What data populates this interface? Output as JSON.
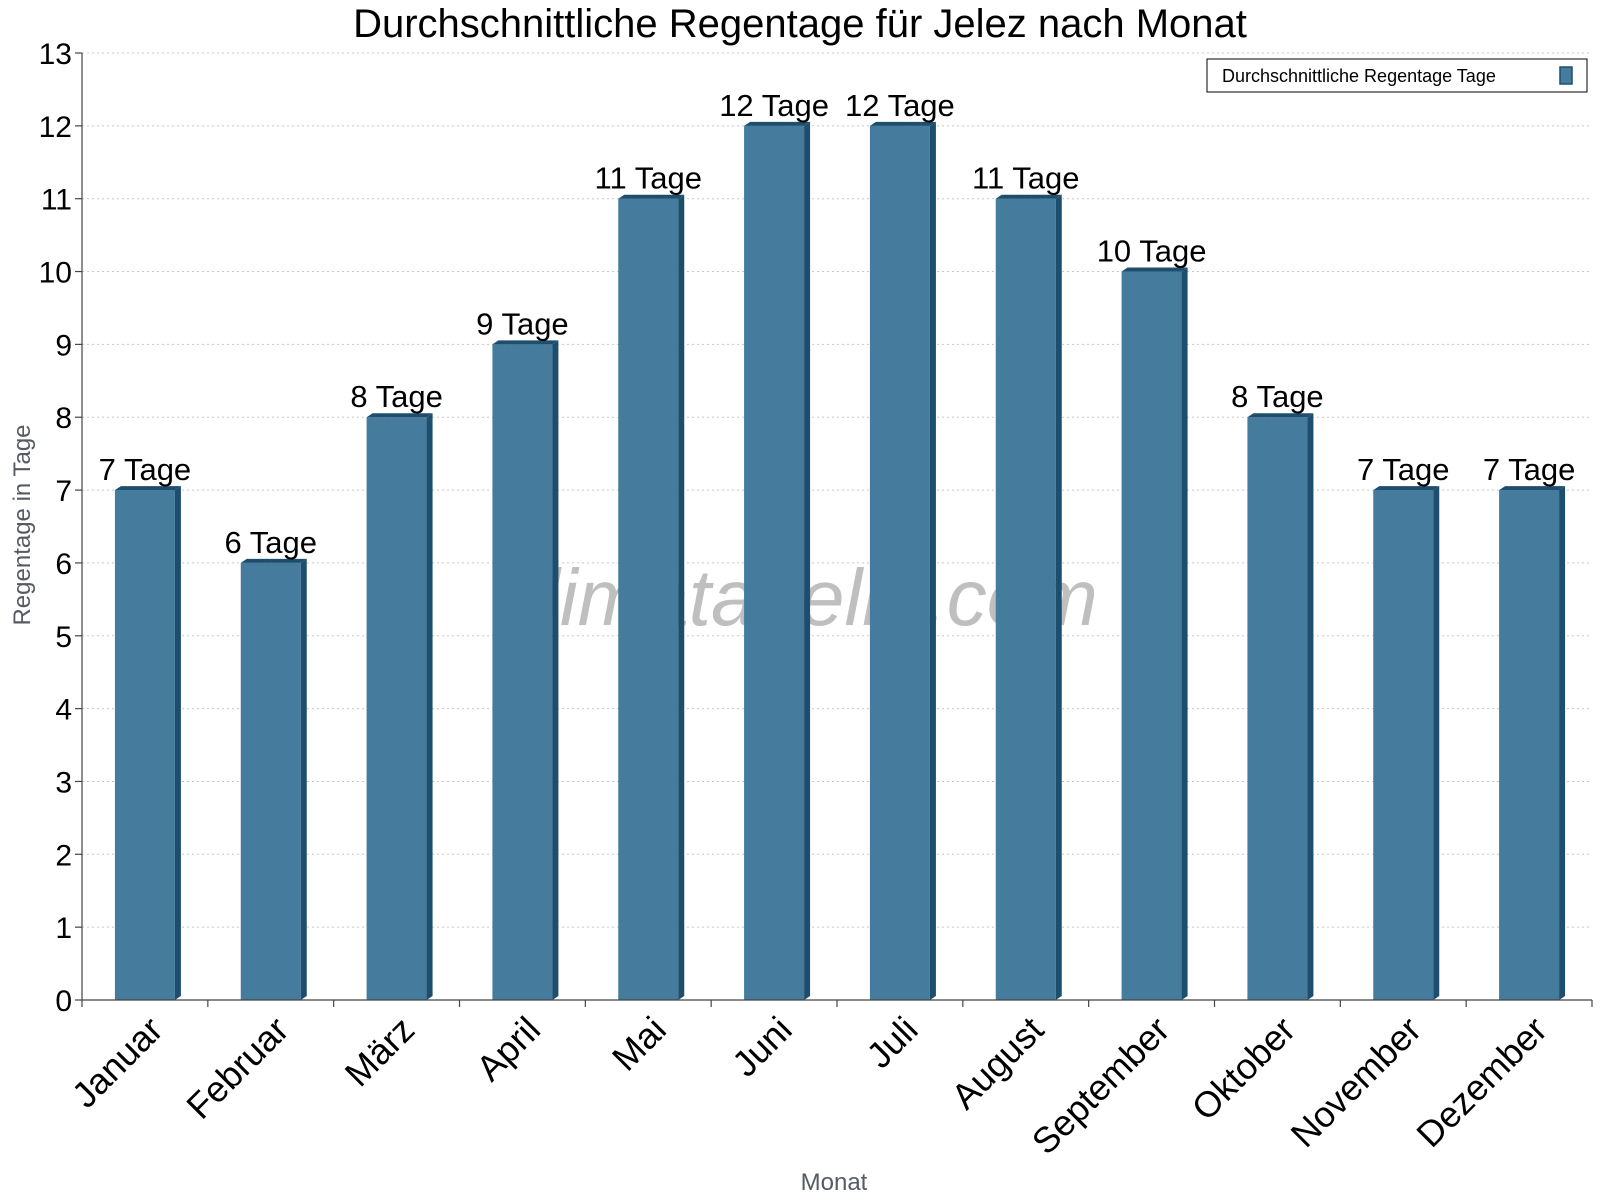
{
  "chart_data": {
    "type": "bar",
    "title": "Durchschnittliche Regentage für Jelez nach Monat",
    "xlabel": "Monat",
    "ylabel": "Regentage in Tage",
    "ylim": [
      0,
      13
    ],
    "yticks": [
      0,
      1,
      2,
      3,
      4,
      5,
      6,
      7,
      8,
      9,
      10,
      11,
      12,
      13
    ],
    "grid": true,
    "legend_position": "top-right",
    "categories": [
      "Januar",
      "Februar",
      "März",
      "April",
      "Mai",
      "Juni",
      "Juli",
      "August",
      "September",
      "Oktober",
      "November",
      "Dezember"
    ],
    "series": [
      {
        "name": "Durchschnittliche Regentage Tage",
        "values": [
          7,
          6,
          8,
          9,
          11,
          12,
          12,
          11,
          10,
          8,
          7,
          7
        ],
        "labels": [
          "7 Tage",
          "6 Tage",
          "8 Tage",
          "9 Tage",
          "11 Tage",
          "12 Tage",
          "12 Tage",
          "11 Tage",
          "10 Tage",
          "8 Tage",
          "7 Tage",
          "7 Tage"
        ]
      }
    ],
    "colors": {
      "bar": "#457b9d",
      "bar_side": "#1d4e6e",
      "bar_top": "#1d4e6e"
    }
  },
  "watermark": "klimatabelle.com"
}
